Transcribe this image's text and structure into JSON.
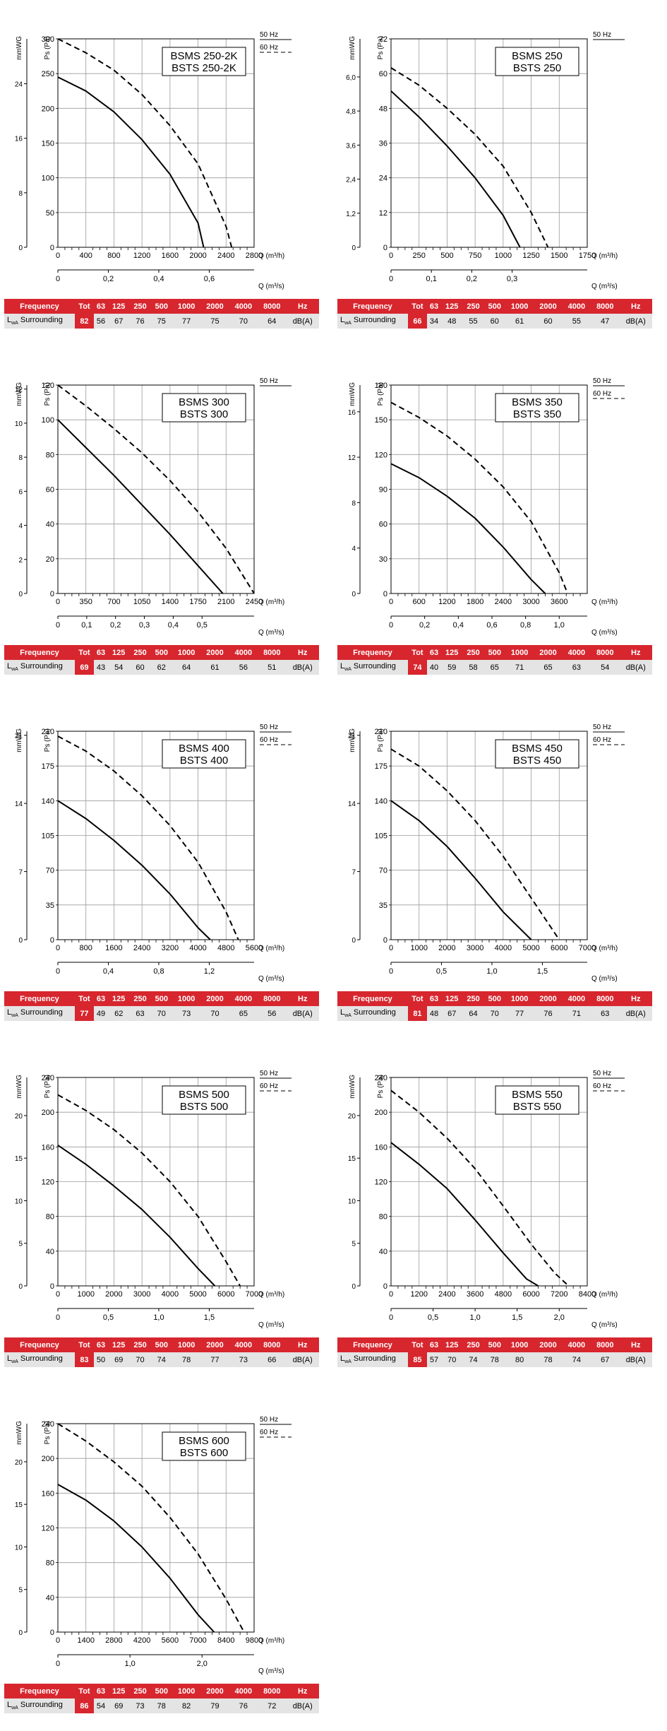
{
  "table_header": {
    "frequency": "Frequency",
    "tot": "Tot",
    "bands": [
      "63",
      "125",
      "250",
      "500",
      "1000",
      "2000",
      "4000",
      "8000"
    ],
    "unit": "Hz"
  },
  "table_row": {
    "label_l": "L",
    "label_sub": "wA",
    "label_rest": " Surrounding",
    "unit": "dB(A)"
  },
  "colors": {
    "accent": "#d7262e",
    "row_bg": "#e4e4e4"
  },
  "chart_data": [
    {
      "type": "line",
      "title": "BSMS 250-2K\nBSTS 250-2K",
      "ylabel": "Ps (Pa)",
      "y2label": "mmWG",
      "xlabel": "Q (m³/h)",
      "x2label": "Q (m³/s)",
      "xlim": [
        0,
        2800
      ],
      "ylim": [
        0,
        300
      ],
      "x_ticks": [
        0,
        400,
        800,
        1200,
        1600,
        2000,
        2400,
        2800
      ],
      "y_ticks": [
        0,
        50,
        100,
        150,
        200,
        250,
        300
      ],
      "mm_ticks": [
        8,
        16,
        24
      ],
      "x2_ticks": [
        0.2,
        0.4,
        0.6
      ],
      "x2_tick_labels": [
        "0",
        "0,2",
        "0,4",
        "0,6"
      ],
      "legend": [
        "50 Hz",
        "60 Hz"
      ],
      "legend_position": "top-right",
      "grid": true,
      "series": [
        {
          "name": "50 Hz",
          "style": "solid",
          "x": [
            0,
            400,
            800,
            1200,
            1600,
            2000,
            2080
          ],
          "y": [
            245,
            225,
            195,
            155,
            105,
            35,
            0
          ]
        },
        {
          "name": "60 Hz",
          "style": "dashed",
          "x": [
            0,
            400,
            800,
            1200,
            1600,
            2000,
            2400,
            2480
          ],
          "y": [
            300,
            280,
            255,
            220,
            175,
            120,
            30,
            0
          ]
        }
      ],
      "sound": {
        "tot": "82",
        "values": [
          "56",
          "67",
          "76",
          "75",
          "77",
          "75",
          "70",
          "64"
        ]
      }
    },
    {
      "type": "line",
      "title": "BSMS 250\nBSTS 250",
      "ylabel": "Ps (Pa)",
      "y2label": "mmWG",
      "xlabel": "Q (m³/h)",
      "x2label": "Q (m³/s)",
      "xlim": [
        0,
        1750
      ],
      "ylim": [
        0,
        72
      ],
      "x_ticks": [
        0,
        250,
        500,
        750,
        1000,
        1250,
        1500,
        1750
      ],
      "y_ticks": [
        0,
        12,
        24,
        36,
        48,
        60,
        72
      ],
      "mm_ticks": [
        1.2,
        2.4,
        3.6,
        4.8,
        6.0
      ],
      "mm_tick_labels": [
        "0",
        "1,2",
        "2,4",
        "3,6",
        "4,8",
        "6,0"
      ],
      "x2_ticks": [
        0.1,
        0.2,
        0.3
      ],
      "x2_tick_labels": [
        "0",
        "0,1",
        "0,2",
        "0,3"
      ],
      "legend": [
        "50 Hz"
      ],
      "legend_position": "top-right",
      "grid": true,
      "series": [
        {
          "name": "50 Hz",
          "style": "solid",
          "x": [
            0,
            250,
            500,
            750,
            1000,
            1150
          ],
          "y": [
            54,
            45,
            35,
            24,
            11,
            0
          ]
        },
        {
          "name": "",
          "style": "dashed",
          "x": [
            0,
            250,
            500,
            750,
            1000,
            1250,
            1400
          ],
          "y": [
            62,
            56,
            48,
            39,
            28,
            12,
            0
          ]
        }
      ],
      "sound": {
        "tot": "66",
        "values": [
          "34",
          "48",
          "55",
          "60",
          "61",
          "60",
          "55",
          "47"
        ]
      }
    },
    {
      "type": "line",
      "title": "BSMS 300\nBSTS 300",
      "ylabel": "Ps (Pa)",
      "y2label": "mmWG",
      "xlabel": "Q (m³/h)",
      "x2label": "Q (m³/s)",
      "xlim": [
        0,
        2450
      ],
      "ylim": [
        0,
        120
      ],
      "x_ticks": [
        0,
        350,
        700,
        1050,
        1400,
        1750,
        2100,
        2450
      ],
      "y_ticks": [
        0,
        20,
        40,
        60,
        80,
        100,
        120
      ],
      "mm_ticks": [
        2,
        4,
        6,
        8,
        10,
        12
      ],
      "x2_ticks": [
        0.1,
        0.2,
        0.3,
        0.4,
        0.5
      ],
      "x2_tick_labels": [
        "0",
        "0,1",
        "0,2",
        "0,3",
        "0,4",
        "0,5"
      ],
      "legend": [
        "50 Hz"
      ],
      "legend_position": "top-right",
      "grid": true,
      "series": [
        {
          "name": "50 Hz",
          "style": "solid",
          "x": [
            0,
            350,
            700,
            1050,
            1400,
            1750,
            2060
          ],
          "y": [
            100,
            84,
            68,
            51,
            34,
            16,
            0
          ]
        },
        {
          "name": "",
          "style": "dashed",
          "x": [
            0,
            350,
            700,
            1050,
            1400,
            1750,
            2100,
            2450
          ],
          "y": [
            120,
            108,
            95,
            81,
            65,
            47,
            26,
            0
          ]
        }
      ],
      "sound": {
        "tot": "69",
        "values": [
          "43",
          "54",
          "60",
          "62",
          "64",
          "61",
          "56",
          "51"
        ]
      }
    },
    {
      "type": "line",
      "title": "BSMS 350\nBSTS 350",
      "ylabel": "Ps (Pa)",
      "y2label": "mmWG",
      "xlabel": "Q (m³/h)",
      "x2label": "Q (m³/s)",
      "xlim": [
        0,
        4200
      ],
      "ylim": [
        0,
        180
      ],
      "x_ticks": [
        0,
        600,
        1200,
        1800,
        2400,
        3000,
        3600,
        4200
      ],
      "x_tick_labels": [
        "0",
        "600",
        "1200",
        "1800",
        "2400",
        "3000",
        "3600",
        ""
      ],
      "y_ticks": [
        0,
        30,
        60,
        90,
        120,
        150,
        180
      ],
      "mm_ticks": [
        4,
        8,
        12,
        16
      ],
      "x2_ticks": [
        0.2,
        0.4,
        0.6,
        0.8,
        1.0
      ],
      "x2_tick_labels": [
        "0",
        "0,2",
        "0,4",
        "0,6",
        "0,8",
        "1,0"
      ],
      "legend": [
        "50 Hz",
        "60 Hz"
      ],
      "legend_position": "top-right",
      "grid": true,
      "series": [
        {
          "name": "50 Hz",
          "style": "solid",
          "x": [
            0,
            600,
            1200,
            1800,
            2400,
            3000,
            3300
          ],
          "y": [
            112,
            100,
            84,
            65,
            40,
            12,
            0
          ]
        },
        {
          "name": "60 Hz",
          "style": "dashed",
          "x": [
            0,
            600,
            1200,
            1800,
            2400,
            3000,
            3600,
            3780
          ],
          "y": [
            165,
            152,
            136,
            116,
            92,
            62,
            18,
            0
          ]
        }
      ],
      "sound": {
        "tot": "74",
        "values": [
          "40",
          "59",
          "58",
          "65",
          "71",
          "65",
          "63",
          "54"
        ]
      }
    },
    {
      "type": "line",
      "title": "BSMS 400\nBSTS 400",
      "ylabel": "Ps (Pa)",
      "y2label": "mmWG",
      "xlabel": "Q (m³/h)",
      "x2label": "Q (m³/s)",
      "xlim": [
        0,
        5600
      ],
      "ylim": [
        0,
        210
      ],
      "x_ticks": [
        0,
        800,
        1600,
        2400,
        3200,
        4000,
        4800,
        5600
      ],
      "y_ticks": [
        0,
        35,
        70,
        105,
        140,
        175,
        210
      ],
      "mm_ticks": [
        7,
        14,
        21
      ],
      "x2_ticks": [
        0.4,
        0.8,
        1.2
      ],
      "x2_tick_labels": [
        "0",
        "0,4",
        "0,8",
        "1,2"
      ],
      "legend": [
        "50 Hz",
        "60 Hz"
      ],
      "legend_position": "top-right",
      "grid": true,
      "series": [
        {
          "name": "50 Hz",
          "style": "solid",
          "x": [
            0,
            800,
            1600,
            2400,
            3200,
            4000,
            4350
          ],
          "y": [
            140,
            122,
            100,
            75,
            46,
            12,
            0
          ]
        },
        {
          "name": "60 Hz",
          "style": "dashed",
          "x": [
            0,
            800,
            1600,
            2400,
            3200,
            4000,
            4800,
            5150
          ],
          "y": [
            205,
            190,
            170,
            145,
            115,
            78,
            28,
            0
          ]
        }
      ],
      "sound": {
        "tot": "77",
        "values": [
          "49",
          "62",
          "63",
          "70",
          "73",
          "70",
          "65",
          "56"
        ]
      }
    },
    {
      "type": "line",
      "title": "BSMS 450\nBSTS 450",
      "ylabel": "Ps (Pa)",
      "y2label": "mmWG",
      "xlabel": "Q (m³/h)",
      "x2label": "Q (m³/s)",
      "xlim": [
        0,
        7000
      ],
      "ylim": [
        0,
        210
      ],
      "x_ticks": [
        0,
        1000,
        2000,
        3000,
        4000,
        5000,
        6000,
        7000
      ],
      "y_ticks": [
        0,
        35,
        70,
        105,
        140,
        175,
        210
      ],
      "mm_ticks": [
        7,
        14,
        21
      ],
      "x2_ticks": [
        0.5,
        1.0,
        1.5
      ],
      "x2_tick_labels": [
        "0",
        "0,5",
        "1,0",
        "1,5"
      ],
      "legend": [
        "50 Hz",
        "60 Hz"
      ],
      "legend_position": "top-right",
      "grid": true,
      "series": [
        {
          "name": "50 Hz",
          "style": "solid",
          "x": [
            0,
            1000,
            2000,
            3000,
            4000,
            5000
          ],
          "y": [
            140,
            120,
            94,
            62,
            28,
            0
          ]
        },
        {
          "name": "60 Hz",
          "style": "dashed",
          "x": [
            0,
            1000,
            2000,
            3000,
            4000,
            5000,
            6000
          ],
          "y": [
            192,
            175,
            150,
            120,
            84,
            42,
            0
          ]
        }
      ],
      "sound": {
        "tot": "81",
        "values": [
          "48",
          "67",
          "64",
          "70",
          "77",
          "76",
          "71",
          "63"
        ]
      }
    },
    {
      "type": "line",
      "title": "BSMS 500\nBSTS 500",
      "ylabel": "Ps (Pa)",
      "y2label": "mmWG",
      "xlabel": "Q (m³/h)",
      "x2label": "Q (m³/s)",
      "xlim": [
        0,
        7000
      ],
      "ylim": [
        0,
        240
      ],
      "x_ticks": [
        0,
        1000,
        2000,
        3000,
        4000,
        5000,
        6000,
        7000
      ],
      "y_ticks": [
        0,
        40,
        80,
        120,
        160,
        200,
        240
      ],
      "mm_ticks": [
        5,
        10,
        15,
        20
      ],
      "x2_ticks": [
        0.5,
        1.0,
        1.5
      ],
      "x2_tick_labels": [
        "0",
        "0,5",
        "1,0",
        "1,5"
      ],
      "legend": [
        "50 Hz",
        "60 Hz"
      ],
      "legend_position": "top-right",
      "grid": true,
      "series": [
        {
          "name": "50 Hz",
          "style": "solid",
          "x": [
            0,
            1000,
            2000,
            3000,
            4000,
            5000,
            5600
          ],
          "y": [
            162,
            140,
            115,
            88,
            56,
            20,
            0
          ]
        },
        {
          "name": "60 Hz",
          "style": "dashed",
          "x": [
            0,
            1000,
            2000,
            3000,
            4000,
            5000,
            6000,
            6500
          ],
          "y": [
            220,
            202,
            180,
            153,
            120,
            80,
            28,
            0
          ]
        }
      ],
      "sound": {
        "tot": "83",
        "values": [
          "50",
          "69",
          "70",
          "74",
          "78",
          "77",
          "73",
          "66"
        ]
      }
    },
    {
      "type": "line",
      "title": "BSMS 550\nBSTS 550",
      "ylabel": "Ps (Pa)",
      "y2label": "mmWG",
      "xlabel": "Q (m³/h)",
      "x2label": "Q (m³/s)",
      "xlim": [
        0,
        8400
      ],
      "ylim": [
        0,
        240
      ],
      "x_ticks": [
        0,
        1200,
        2400,
        3600,
        4800,
        6000,
        7200,
        8400
      ],
      "y_ticks": [
        0,
        40,
        80,
        120,
        160,
        200,
        240
      ],
      "mm_ticks": [
        5,
        10,
        15,
        20
      ],
      "x2_ticks": [
        0.5,
        1.0,
        1.5,
        2.0
      ],
      "x2_tick_labels": [
        "0",
        "0,5",
        "1,0",
        "1,5",
        "2,0"
      ],
      "legend": [
        "50 Hz",
        "60 Hz"
      ],
      "legend_position": "top-right",
      "grid": true,
      "series": [
        {
          "name": "50 Hz",
          "style": "solid",
          "x": [
            0,
            1200,
            2400,
            3600,
            4800,
            5800,
            6300
          ],
          "y": [
            165,
            140,
            112,
            76,
            38,
            8,
            0
          ]
        },
        {
          "name": "60 Hz",
          "style": "dashed",
          "x": [
            0,
            1200,
            2400,
            3600,
            4800,
            6000,
            7000,
            7600
          ],
          "y": [
            225,
            200,
            170,
            135,
            92,
            48,
            15,
            0
          ]
        }
      ],
      "sound": {
        "tot": "85",
        "values": [
          "57",
          "70",
          "74",
          "78",
          "80",
          "78",
          "74",
          "67"
        ]
      }
    },
    {
      "type": "line",
      "title": "BSMS 600\nBSTS 600",
      "ylabel": "Ps (Pa)",
      "y2label": "mmWG",
      "xlabel": "Q (m³/h)",
      "x2label": "Q (m³/s)",
      "xlim": [
        0,
        9800
      ],
      "ylim": [
        0,
        240
      ],
      "x_ticks": [
        0,
        1400,
        2800,
        4200,
        5600,
        7000,
        8400,
        9800
      ],
      "y_ticks": [
        0,
        40,
        80,
        120,
        160,
        200,
        240
      ],
      "mm_ticks": [
        5,
        10,
        15,
        20
      ],
      "x2_ticks": [
        1.0,
        2.0
      ],
      "x2_tick_labels": [
        "0",
        "1,0",
        "2,0"
      ],
      "legend": [
        "50 Hz",
        "60 Hz"
      ],
      "legend_position": "top-right",
      "grid": true,
      "series": [
        {
          "name": "50 Hz",
          "style": "solid",
          "x": [
            0,
            1400,
            2800,
            4200,
            5600,
            7000,
            7800
          ],
          "y": [
            170,
            152,
            128,
            98,
            62,
            20,
            0
          ]
        },
        {
          "name": "60 Hz",
          "style": "dashed",
          "x": [
            0,
            1400,
            2800,
            4200,
            5600,
            7000,
            8400,
            9300
          ],
          "y": [
            240,
            220,
            196,
            168,
            132,
            90,
            38,
            0
          ]
        }
      ],
      "sound": {
        "tot": "86",
        "values": [
          "54",
          "69",
          "73",
          "78",
          "82",
          "79",
          "76",
          "72"
        ]
      }
    }
  ]
}
